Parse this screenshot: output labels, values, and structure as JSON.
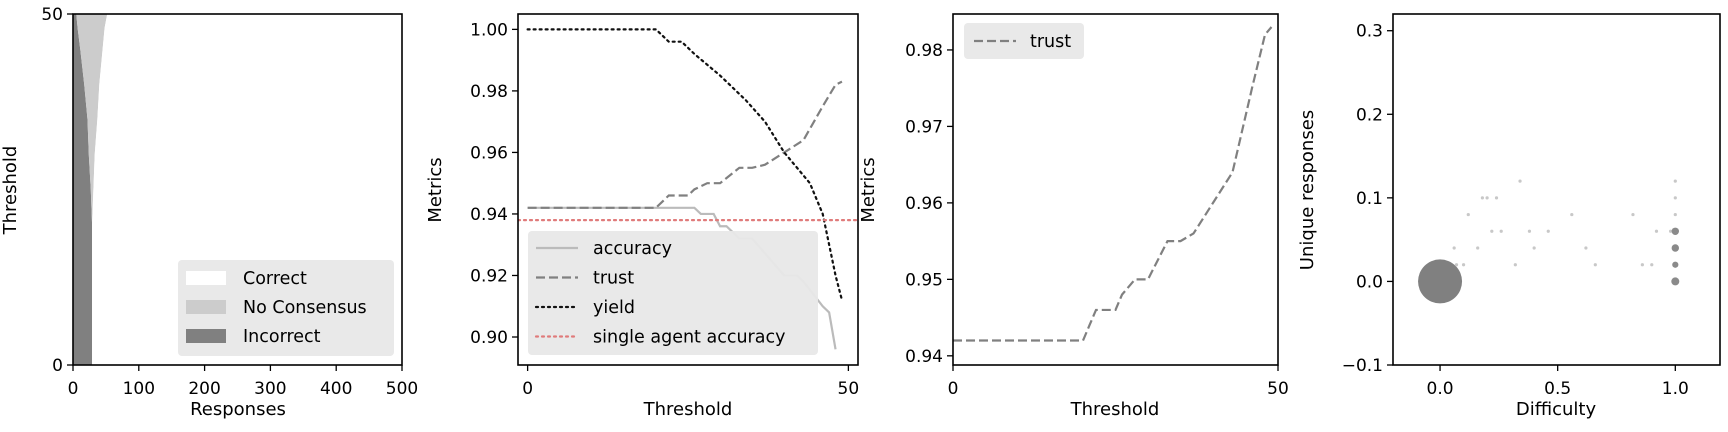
{
  "chart_data": [
    {
      "type": "area",
      "orientation": "horizontal-stacked",
      "xlabel": "Responses",
      "ylabel": "Threshold",
      "xlim": [
        0,
        500
      ],
      "ylim": [
        0,
        50
      ],
      "xtick_labels": [
        "0",
        "100",
        "200",
        "300",
        "400",
        "500"
      ],
      "xticks": [
        0,
        100,
        200,
        300,
        400,
        500
      ],
      "ytick_labels": [
        "0",
        "50"
      ],
      "yticks": [
        0,
        50
      ],
      "threshold": [
        0,
        10,
        20,
        25,
        30,
        35,
        40,
        45,
        48,
        50
      ],
      "series": [
        {
          "name": "Incorrect",
          "color": "#808080",
          "values": [
            29,
            29,
            29,
            27,
            24,
            22,
            17,
            11,
            7,
            5
          ]
        },
        {
          "name": "No Consensus",
          "color": "#cccccc",
          "values": [
            0,
            0,
            0,
            4,
            9,
            15,
            23,
            34,
            41,
            47
          ]
        },
        {
          "name": "Correct",
          "color": "#ffffff",
          "values": [
            471,
            471,
            471,
            469,
            467,
            463,
            460,
            455,
            452,
            448
          ]
        }
      ],
      "legend": {
        "placement": "lower-right",
        "entries": [
          "Correct",
          "No Consensus",
          "Incorrect"
        ]
      }
    },
    {
      "type": "line",
      "xlabel": "Threshold",
      "ylabel": "Metrics",
      "xlim": [
        -1.5,
        51.5
      ],
      "ylim": [
        0.8909,
        1.005
      ],
      "xtick_labels": [
        "0",
        "50"
      ],
      "xticks": [
        0,
        50
      ],
      "ytick_labels": [
        "0.90",
        "0.92",
        "0.94",
        "0.96",
        "0.98",
        "1.00"
      ],
      "yticks": [
        0.9,
        0.92,
        0.94,
        0.96,
        0.98,
        1.0
      ],
      "series": [
        {
          "name": "accuracy",
          "style": "solid",
          "color": "#bbbbbb",
          "x": [
            0,
            26,
            27,
            29,
            30,
            31,
            33,
            35,
            40,
            42,
            43,
            46,
            47,
            48
          ],
          "y": [
            0.942,
            0.942,
            0.94,
            0.94,
            0.936,
            0.936,
            0.932,
            0.932,
            0.92,
            0.92,
            0.918,
            0.91,
            0.908,
            0.896
          ]
        },
        {
          "name": "trust",
          "style": "dashed",
          "color": "#808080",
          "x": [
            0,
            20,
            21,
            22,
            25,
            26,
            28,
            30,
            33,
            35,
            37,
            40,
            43,
            46,
            48,
            49
          ],
          "y": [
            0.942,
            0.942,
            0.944,
            0.946,
            0.946,
            0.948,
            0.95,
            0.95,
            0.955,
            0.955,
            0.956,
            0.96,
            0.964,
            0.975,
            0.982,
            0.983
          ]
        },
        {
          "name": "yield",
          "style": "dotted",
          "color": "#111111",
          "x": [
            0,
            20,
            22,
            24,
            26,
            30,
            34,
            37,
            40,
            44,
            46,
            47,
            48,
            49
          ],
          "y": [
            1.0,
            1.0,
            0.996,
            0.996,
            0.992,
            0.985,
            0.977,
            0.97,
            0.96,
            0.95,
            0.94,
            0.93,
            0.92,
            0.912
          ]
        },
        {
          "name": "single agent accuracy",
          "style": "dotted-hline",
          "color": "#e07b7b",
          "y_const": 0.938
        }
      ],
      "legend": {
        "placement": "lower-left",
        "entries": [
          "accuracy",
          "trust",
          "yield",
          "single agent accuracy"
        ]
      }
    },
    {
      "type": "line",
      "xlabel": "Threshold",
      "ylabel": "Metrics",
      "xlim": [
        0,
        50
      ],
      "ylim": [
        0.9388,
        0.9847
      ],
      "xtick_labels": [
        "0",
        "50"
      ],
      "xticks": [
        0,
        50
      ],
      "ytick_labels": [
        "0.94",
        "0.95",
        "0.96",
        "0.97",
        "0.98"
      ],
      "yticks": [
        0.94,
        0.95,
        0.96,
        0.97,
        0.98
      ],
      "series": [
        {
          "name": "trust",
          "style": "dashed",
          "color": "#808080",
          "x": [
            0,
            20,
            21,
            22,
            25,
            26,
            28,
            30,
            33,
            35,
            37,
            40,
            43,
            46,
            48,
            49
          ],
          "y": [
            0.942,
            0.942,
            0.944,
            0.946,
            0.946,
            0.948,
            0.95,
            0.95,
            0.955,
            0.955,
            0.956,
            0.96,
            0.964,
            0.975,
            0.982,
            0.983
          ]
        }
      ],
      "legend": {
        "placement": "upper-left",
        "entries": [
          "trust"
        ]
      }
    },
    {
      "type": "scatter",
      "xlabel": "Difficulty",
      "ylabel": "Unique responses",
      "xlim": [
        -0.2,
        1.19
      ],
      "ylim": [
        -0.1,
        0.32
      ],
      "xtick_labels": [
        "0.0",
        "0.5",
        "1.0"
      ],
      "xticks": [
        0,
        0.5,
        1.0
      ],
      "ytick_labels": [
        "−0.1",
        "0.0",
        "0.1",
        "0.2",
        "0.3"
      ],
      "yticks": [
        -0.1,
        0,
        0.1,
        0.2,
        0.3
      ],
      "points": [
        {
          "x": 0.0,
          "y": 0.0,
          "count": 400
        },
        {
          "x": 0.34,
          "y": 0.12,
          "count": 1
        },
        {
          "x": 1.0,
          "y": 0.12,
          "count": 1
        },
        {
          "x": 0.18,
          "y": 0.1,
          "count": 1
        },
        {
          "x": 0.2,
          "y": 0.1,
          "count": 1
        },
        {
          "x": 0.24,
          "y": 0.1,
          "count": 1
        },
        {
          "x": 1.0,
          "y": 0.1,
          "count": 1
        },
        {
          "x": 0.12,
          "y": 0.08,
          "count": 1
        },
        {
          "x": 0.56,
          "y": 0.08,
          "count": 1
        },
        {
          "x": 0.82,
          "y": 0.08,
          "count": 1
        },
        {
          "x": 1.0,
          "y": 0.08,
          "count": 1
        },
        {
          "x": 0.22,
          "y": 0.06,
          "count": 1
        },
        {
          "x": 0.26,
          "y": 0.06,
          "count": 1
        },
        {
          "x": 0.38,
          "y": 0.06,
          "count": 1
        },
        {
          "x": 0.46,
          "y": 0.06,
          "count": 1
        },
        {
          "x": 0.92,
          "y": 0.06,
          "count": 1
        },
        {
          "x": 0.98,
          "y": 0.06,
          "count": 1
        },
        {
          "x": 1.0,
          "y": 0.06,
          "count": 4
        },
        {
          "x": 0.06,
          "y": 0.04,
          "count": 1
        },
        {
          "x": 0.16,
          "y": 0.04,
          "count": 1
        },
        {
          "x": 0.4,
          "y": 0.04,
          "count": 1
        },
        {
          "x": 0.62,
          "y": 0.04,
          "count": 1
        },
        {
          "x": 1.0,
          "y": 0.04,
          "count": 4
        },
        {
          "x": 0.07,
          "y": 0.02,
          "count": 1
        },
        {
          "x": 0.1,
          "y": 0.02,
          "count": 1
        },
        {
          "x": 0.32,
          "y": 0.02,
          "count": 1
        },
        {
          "x": 0.66,
          "y": 0.02,
          "count": 1
        },
        {
          "x": 0.86,
          "y": 0.02,
          "count": 1
        },
        {
          "x": 0.9,
          "y": 0.02,
          "count": 1
        },
        {
          "x": 1.0,
          "y": 0.02,
          "count": 2
        },
        {
          "x": 1.0,
          "y": 0.0,
          "count": 5
        }
      ]
    }
  ]
}
